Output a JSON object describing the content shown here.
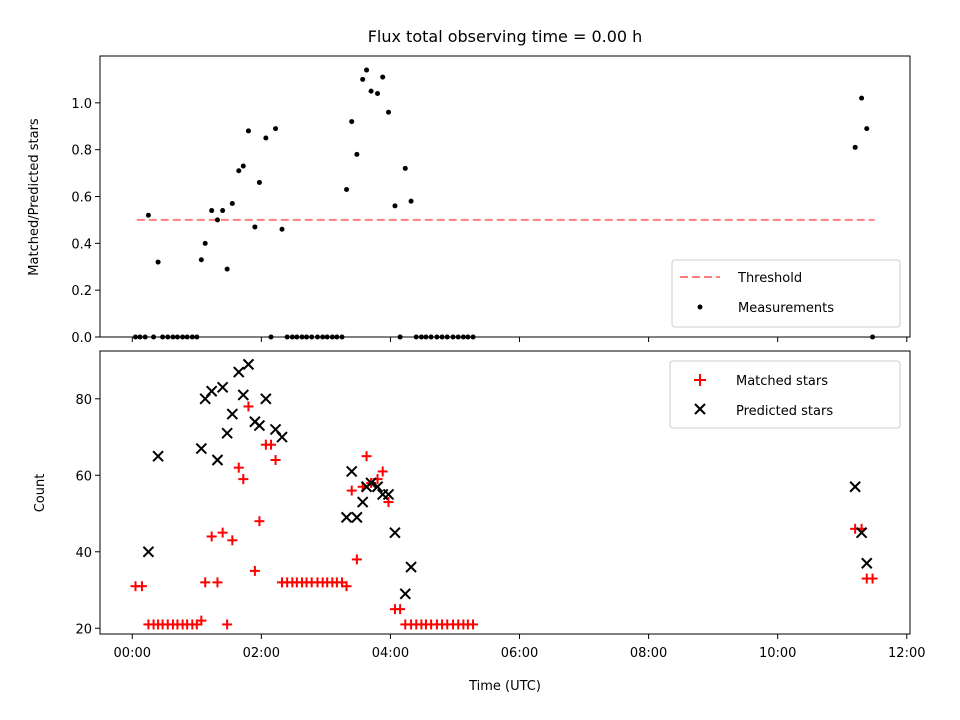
{
  "chart_data": [
    {
      "type": "scatter",
      "title": "Flux total observing time = 0.00 h",
      "ylabel": "Matched/Predicted stars",
      "xlabel": "",
      "xlim": [
        -0.5,
        12.05
      ],
      "ylim": [
        0,
        1.2
      ],
      "yticks": [
        0,
        0.2,
        0.4,
        0.6,
        0.8,
        1.0
      ],
      "ytick_labels": [
        "0.0",
        "0.2",
        "0.4",
        "0.6",
        "0.8",
        "1.0"
      ],
      "xticks": [
        0,
        2,
        4,
        6,
        8,
        10,
        12
      ],
      "grid": false,
      "legend_position": "lower-right",
      "series": [
        {
          "name": "Threshold",
          "kind": "line",
          "style": "dashed",
          "color": "#ff7f7f",
          "x": [
            0.07,
            11.5
          ],
          "y": [
            0.5,
            0.5
          ]
        },
        {
          "name": "Measurements",
          "kind": "scatter",
          "color": "#000000",
          "points": [
            [
              0.05,
              0
            ],
            [
              0.12,
              0
            ],
            [
              0.2,
              0
            ],
            [
              0.25,
              0.52
            ],
            [
              0.33,
              0
            ],
            [
              0.4,
              0.32
            ],
            [
              0.47,
              0
            ],
            [
              0.55,
              0
            ],
            [
              0.63,
              0
            ],
            [
              0.7,
              0
            ],
            [
              0.78,
              0
            ],
            [
              0.85,
              0
            ],
            [
              0.93,
              0
            ],
            [
              1.0,
              0
            ],
            [
              1.07,
              0.33
            ],
            [
              1.13,
              0.4
            ],
            [
              1.23,
              0.54
            ],
            [
              1.32,
              0.5
            ],
            [
              1.4,
              0.54
            ],
            [
              1.47,
              0.29
            ],
            [
              1.55,
              0.57
            ],
            [
              1.65,
              0.71
            ],
            [
              1.72,
              0.73
            ],
            [
              1.8,
              0.88
            ],
            [
              1.9,
              0.47
            ],
            [
              1.97,
              0.66
            ],
            [
              2.07,
              0.85
            ],
            [
              2.15,
              0
            ],
            [
              2.22,
              0.89
            ],
            [
              2.32,
              0.46
            ],
            [
              2.4,
              0
            ],
            [
              2.48,
              0
            ],
            [
              2.55,
              0
            ],
            [
              2.63,
              0
            ],
            [
              2.7,
              0
            ],
            [
              2.78,
              0
            ],
            [
              2.87,
              0
            ],
            [
              2.95,
              0
            ],
            [
              3.02,
              0
            ],
            [
              3.1,
              0
            ],
            [
              3.17,
              0
            ],
            [
              3.25,
              0
            ],
            [
              3.32,
              0.63
            ],
            [
              3.4,
              0.92
            ],
            [
              3.48,
              0.78
            ],
            [
              3.57,
              1.1
            ],
            [
              3.63,
              1.14
            ],
            [
              3.7,
              1.05
            ],
            [
              3.8,
              1.04
            ],
            [
              3.88,
              1.11
            ],
            [
              3.97,
              0.96
            ],
            [
              4.07,
              0.56
            ],
            [
              4.15,
              0
            ],
            [
              4.23,
              0.72
            ],
            [
              4.32,
              0.58
            ],
            [
              4.4,
              0
            ],
            [
              4.48,
              0
            ],
            [
              4.55,
              0
            ],
            [
              4.63,
              0
            ],
            [
              4.72,
              0
            ],
            [
              4.8,
              0
            ],
            [
              4.88,
              0
            ],
            [
              4.97,
              0
            ],
            [
              5.05,
              0
            ],
            [
              5.13,
              0
            ],
            [
              5.2,
              0
            ],
            [
              5.28,
              0
            ],
            [
              11.2,
              0.81
            ],
            [
              11.3,
              1.02
            ],
            [
              11.38,
              0.89
            ],
            [
              11.47,
              0
            ]
          ]
        }
      ]
    },
    {
      "type": "scatter",
      "title": "",
      "ylabel": "Count",
      "xlabel": "Time (UTC)",
      "xlim": [
        -0.5,
        12.05
      ],
      "ylim": [
        18.5,
        92.5
      ],
      "yticks": [
        20,
        40,
        60,
        80
      ],
      "ytick_labels": [
        "20",
        "40",
        "60",
        "80"
      ],
      "xticks": [
        0,
        2,
        4,
        6,
        8,
        10,
        12
      ],
      "xtick_labels": [
        "00:00",
        "02:00",
        "04:00",
        "06:00",
        "08:00",
        "10:00",
        "12:00"
      ],
      "grid": false,
      "legend_position": "top-right",
      "series": [
        {
          "name": "Matched stars",
          "kind": "scatter",
          "marker": "plus",
          "color": "#ff0000",
          "points": [
            [
              0.05,
              31
            ],
            [
              0.15,
              31
            ],
            [
              0.25,
              21
            ],
            [
              0.33,
              21
            ],
            [
              0.4,
              21
            ],
            [
              0.47,
              21
            ],
            [
              0.55,
              21
            ],
            [
              0.63,
              21
            ],
            [
              0.7,
              21
            ],
            [
              0.78,
              21
            ],
            [
              0.85,
              21
            ],
            [
              0.93,
              21
            ],
            [
              1.0,
              21
            ],
            [
              1.07,
              22
            ],
            [
              1.13,
              32
            ],
            [
              1.23,
              44
            ],
            [
              1.32,
              32
            ],
            [
              1.4,
              45
            ],
            [
              1.47,
              21
            ],
            [
              1.55,
              43
            ],
            [
              1.65,
              62
            ],
            [
              1.72,
              59
            ],
            [
              1.8,
              78
            ],
            [
              1.9,
              35
            ],
            [
              1.97,
              48
            ],
            [
              2.07,
              68
            ],
            [
              2.15,
              68
            ],
            [
              2.22,
              64
            ],
            [
              2.32,
              32
            ],
            [
              2.4,
              32
            ],
            [
              2.48,
              32
            ],
            [
              2.55,
              32
            ],
            [
              2.63,
              32
            ],
            [
              2.7,
              32
            ],
            [
              2.78,
              32
            ],
            [
              2.87,
              32
            ],
            [
              2.95,
              32
            ],
            [
              3.02,
              32
            ],
            [
              3.1,
              32
            ],
            [
              3.17,
              32
            ],
            [
              3.25,
              32
            ],
            [
              3.32,
              31
            ],
            [
              3.4,
              56
            ],
            [
              3.48,
              38
            ],
            [
              3.57,
              57
            ],
            [
              3.63,
              65
            ],
            [
              3.7,
              58
            ],
            [
              3.8,
              59
            ],
            [
              3.88,
              61
            ],
            [
              3.97,
              53
            ],
            [
              4.07,
              25
            ],
            [
              4.15,
              25
            ],
            [
              4.23,
              21
            ],
            [
              4.32,
              21
            ],
            [
              4.4,
              21
            ],
            [
              4.48,
              21
            ],
            [
              4.55,
              21
            ],
            [
              4.63,
              21
            ],
            [
              4.72,
              21
            ],
            [
              4.8,
              21
            ],
            [
              4.88,
              21
            ],
            [
              4.97,
              21
            ],
            [
              5.05,
              21
            ],
            [
              5.13,
              21
            ],
            [
              5.2,
              21
            ],
            [
              5.28,
              21
            ],
            [
              11.2,
              46
            ],
            [
              11.3,
              46
            ],
            [
              11.38,
              33
            ],
            [
              11.47,
              33
            ]
          ]
        },
        {
          "name": "Predicted stars",
          "kind": "scatter",
          "marker": "cross",
          "color": "#000000",
          "points": [
            [
              0.25,
              40
            ],
            [
              0.4,
              65
            ],
            [
              1.07,
              67
            ],
            [
              1.13,
              80
            ],
            [
              1.23,
              82
            ],
            [
              1.32,
              64
            ],
            [
              1.4,
              83
            ],
            [
              1.47,
              71
            ],
            [
              1.55,
              76
            ],
            [
              1.65,
              87
            ],
            [
              1.72,
              81
            ],
            [
              1.8,
              89
            ],
            [
              1.9,
              74
            ],
            [
              1.97,
              73
            ],
            [
              2.07,
              80
            ],
            [
              2.22,
              72
            ],
            [
              2.32,
              70
            ],
            [
              3.32,
              49
            ],
            [
              3.4,
              61
            ],
            [
              3.48,
              49
            ],
            [
              3.57,
              53
            ],
            [
              3.63,
              57
            ],
            [
              3.7,
              58
            ],
            [
              3.8,
              57
            ],
            [
              3.88,
              55
            ],
            [
              3.97,
              55
            ],
            [
              4.07,
              45
            ],
            [
              4.23,
              29
            ],
            [
              4.32,
              36
            ],
            [
              11.2,
              57
            ],
            [
              11.3,
              45
            ],
            [
              11.38,
              37
            ]
          ]
        }
      ]
    }
  ]
}
